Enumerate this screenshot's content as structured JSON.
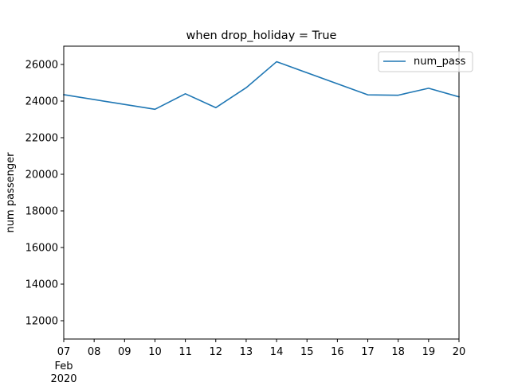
{
  "chart_data": {
    "type": "line",
    "title": "when drop_holiday = True",
    "xlabel": "",
    "ylabel": "num passenger",
    "x": [
      "2020-02-07",
      "2020-02-10",
      "2020-02-11",
      "2020-02-12",
      "2020-02-13",
      "2020-02-14",
      "2020-02-17",
      "2020-02-18",
      "2020-02-19",
      "2020-02-20"
    ],
    "series": [
      {
        "name": "num_pass",
        "color": "#1f77b4",
        "values": [
          24350,
          23550,
          24400,
          23640,
          24730,
          26150,
          24340,
          24320,
          24700,
          24230
        ]
      }
    ],
    "xlim": [
      "2020-02-07",
      "2020-02-20"
    ],
    "ylim": [
      11000,
      27000
    ],
    "x_tick_labels": [
      "07",
      "08",
      "09",
      "10",
      "11",
      "12",
      "13",
      "14",
      "15",
      "16",
      "17",
      "18",
      "19",
      "20"
    ],
    "x_tick_sublabels": [
      "Feb",
      "2020"
    ],
    "y_ticks": [
      12000,
      14000,
      16000,
      18000,
      20000,
      22000,
      24000,
      26000
    ],
    "grid": false,
    "legend_position": "top-right"
  }
}
